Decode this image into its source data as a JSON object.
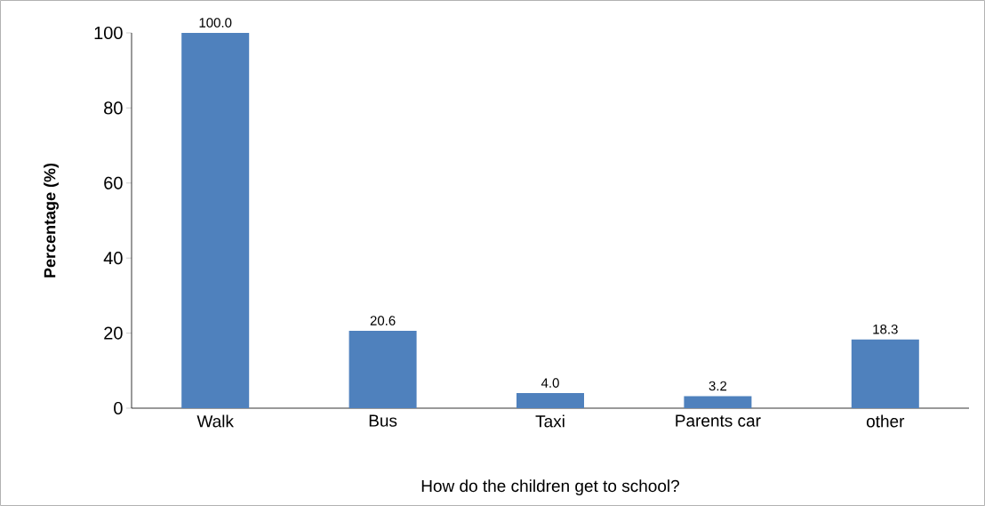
{
  "chart_data": {
    "type": "bar",
    "xlabel": "How do the children get to school?",
    "ylabel": "Percentage (%)",
    "categories": [
      "Walk",
      "Bus",
      "Taxi",
      "Parents car",
      "other"
    ],
    "values": [
      100.0,
      20.6,
      4.0,
      3.2,
      18.3
    ],
    "value_labels": [
      "100.0",
      "20.6",
      "4.0",
      "3.2",
      "18.3"
    ],
    "color": "#4f81bd",
    "ylim": [
      0,
      100
    ],
    "yticks": [
      0,
      20,
      40,
      60,
      80,
      100
    ]
  }
}
